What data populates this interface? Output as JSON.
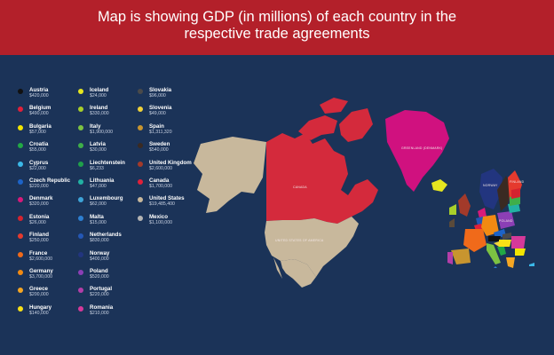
{
  "title_line1": "Map is showing GDP (in millions) of each country in the",
  "title_line2": "respective trade agreements",
  "colors": {
    "header_bg": "#b3202a",
    "map_bg": "#1b3358",
    "usmca_tan": "#c8b89c",
    "canada_red": "#d42a3c",
    "greenland_magenta": "#d0117f"
  },
  "legend": [
    {
      "name": "Austria",
      "value": "$420,000",
      "color": "#111111"
    },
    {
      "name": "Belgium",
      "value": "$490,000",
      "color": "#e0203a"
    },
    {
      "name": "Bulgaria",
      "value": "$57,000",
      "color": "#f2e500"
    },
    {
      "name": "Croatia",
      "value": "$55,000",
      "color": "#22a845"
    },
    {
      "name": "Cyprus",
      "value": "$22,000",
      "color": "#3bb8e8"
    },
    {
      "name": "Czech Republic",
      "value": "$220,000",
      "color": "#1d63c7"
    },
    {
      "name": "Denmark",
      "value": "$320,000",
      "color": "#d81a7a"
    },
    {
      "name": "Estonia",
      "value": "$26,000",
      "color": "#d4232f"
    },
    {
      "name": "Finland",
      "value": "$250,000",
      "color": "#e53a2e"
    },
    {
      "name": "France",
      "value": "$2,600,000",
      "color": "#f06a1a"
    },
    {
      "name": "Germany",
      "value": "$3,700,000",
      "color": "#f28a12"
    },
    {
      "name": "Greece",
      "value": "$200,000",
      "color": "#f5a623"
    },
    {
      "name": "Hungary",
      "value": "$140,000",
      "color": "#f7e017"
    },
    {
      "name": "Iceland",
      "value": "$24,000",
      "color": "#e5e620"
    },
    {
      "name": "Ireland",
      "value": "$330,000",
      "color": "#a8cf2a"
    },
    {
      "name": "Italy",
      "value": "$1,900,000",
      "color": "#7cc242"
    },
    {
      "name": "Latvia",
      "value": "$30,000",
      "color": "#3fae49"
    },
    {
      "name": "Liechtenstein",
      "value": "$6,233",
      "color": "#1fa04a"
    },
    {
      "name": "Lithuania",
      "value": "$47,000",
      "color": "#22b1a3"
    },
    {
      "name": "Luxembourg",
      "value": "$62,000",
      "color": "#3ea4d8"
    },
    {
      "name": "Malta",
      "value": "$15,000",
      "color": "#2d7fd1"
    },
    {
      "name": "Netherlands",
      "value": "$830,000",
      "color": "#2457b5"
    },
    {
      "name": "Norway",
      "value": "$400,000",
      "color": "#22357f"
    },
    {
      "name": "Poland",
      "value": "$520,000",
      "color": "#8b3fb5"
    },
    {
      "name": "Portugal",
      "value": "$220,000",
      "color": "#b33ea8"
    },
    {
      "name": "Romania",
      "value": "$210,000",
      "color": "#d6399a"
    },
    {
      "name": "Slovakia",
      "value": "$96,000",
      "color": "#4a4a4a"
    },
    {
      "name": "Slovenia",
      "value": "$49,000",
      "color": "#f0d23a"
    },
    {
      "name": "Spain",
      "value": "$1,311,320",
      "color": "#c8952f"
    },
    {
      "name": "Sweden",
      "value": "$540,000",
      "color": "#3a2a22"
    },
    {
      "name": "United Kingdom",
      "value": "$2,600,000",
      "color": "#a33a2a"
    },
    {
      "name": "Canada",
      "value": "$1,700,000",
      "color": "#e0203a"
    },
    {
      "name": "United States",
      "value": "$19,485,400",
      "color": "#c8b89c"
    },
    {
      "name": "Mexico",
      "value": "$1,100,000",
      "color": "#b4b4b4"
    }
  ],
  "map": {
    "regions": [
      {
        "id": "alaska",
        "label": "",
        "color": "#c8b89c"
      },
      {
        "id": "canada",
        "label": "CANADA",
        "color": "#d42a3c"
      },
      {
        "id": "arctic-islands",
        "label": "",
        "color": "#d42a3c"
      },
      {
        "id": "united-states",
        "label": "UNITED STATES OF AMERICA",
        "color": "#c8b89c"
      },
      {
        "id": "mexico",
        "label": "",
        "color": "#c8b89c"
      },
      {
        "id": "greenland",
        "label": "GREENLAND (DENMARK)",
        "color": "#d0117f"
      },
      {
        "id": "iceland",
        "label": "",
        "color": "#e5e620"
      },
      {
        "id": "europe",
        "label": "",
        "color": "#2457b5"
      }
    ],
    "europe_labels": [
      "NORWAY",
      "FINLAND",
      "POLAND"
    ]
  }
}
